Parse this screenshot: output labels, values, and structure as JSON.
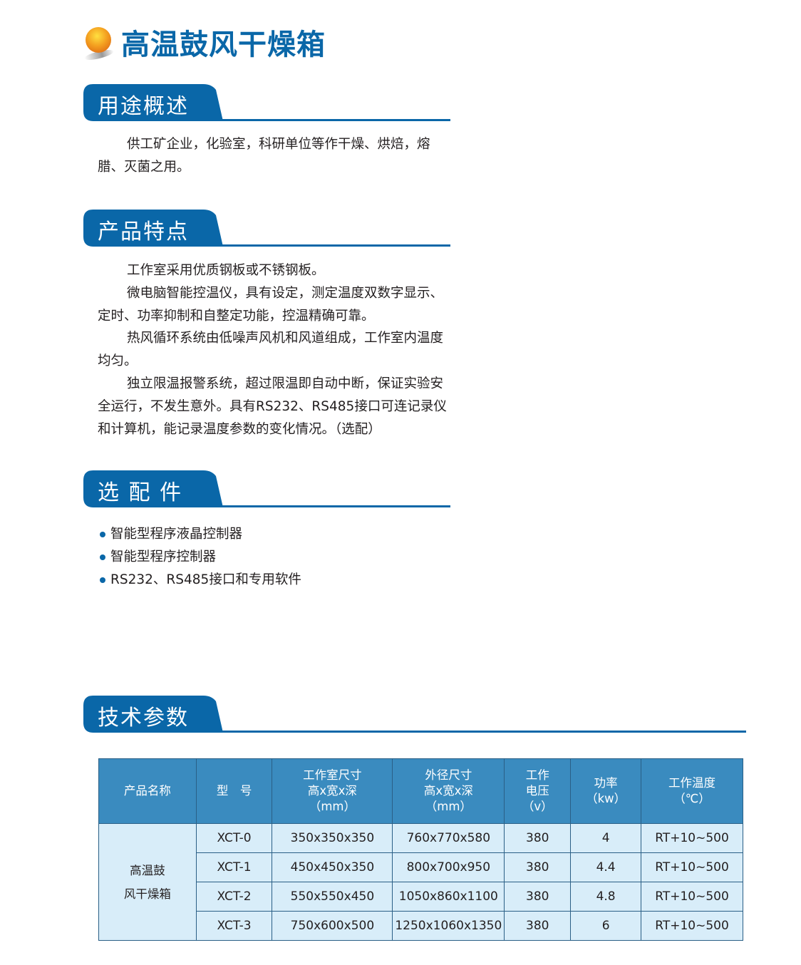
{
  "title": "高温鼓风干燥箱",
  "sections": {
    "usage": {
      "label": "用途概述",
      "paragraphs": [
        "供工矿企业，化验室，科研单位等作干燥、烘焙，熔腊、灭菌之用。"
      ]
    },
    "features": {
      "label": "产品特点",
      "paragraphs": [
        "工作室采用优质钢板或不锈钢板。",
        "微电脑智能控温仪，具有设定，测定温度双数字显示、定时、功率抑制和自整定功能，控温精确可靠。",
        "热风循环系统由低噪声风机和风道组成，工作室内温度均匀。",
        "独立限温报警系统，超过限温即自动中断，保证实验安全运行，不发生意外。具有RS232、RS485接口可连记录仪和计算机，能记录温度参数的变化情况。（选配）"
      ]
    },
    "options": {
      "label": "选 配 件",
      "items": [
        "智能型程序液晶控制器",
        "智能型程序控制器",
        "RS232、RS485接口和专用软件"
      ]
    },
    "specs": {
      "label": "技术参数"
    }
  },
  "table": {
    "headers": [
      [
        "产品名称"
      ],
      [
        "型　号"
      ],
      [
        "工作室尺寸",
        "高x宽x深",
        "（mm）"
      ],
      [
        "外径尺寸",
        "高x宽x深",
        "（mm）"
      ],
      [
        "工作",
        "电压",
        "（v）"
      ],
      [
        "功率",
        "（kw）"
      ],
      [
        "工作温度",
        "（℃）"
      ]
    ],
    "product_name": [
      "高温鼓",
      "风干燥箱"
    ],
    "rows": [
      [
        "XCT-0",
        "350x350x350",
        "760x770x580",
        "380",
        "4",
        "RT+10~500"
      ],
      [
        "XCT-1",
        "450x450x350",
        "800x700x950",
        "380",
        "4.4",
        "RT+10~500"
      ],
      [
        "XCT-2",
        "550x550x450",
        "1050x860x1100",
        "380",
        "4.8",
        "RT+10~500"
      ],
      [
        "XCT-3",
        "750x600x500",
        "1250x1060x1350",
        "380",
        "6",
        "RT+10~500"
      ]
    ]
  },
  "colors": {
    "brand_blue": "#0a67a8",
    "table_header": "#3a8bbf",
    "table_body": "#d8edf9"
  }
}
